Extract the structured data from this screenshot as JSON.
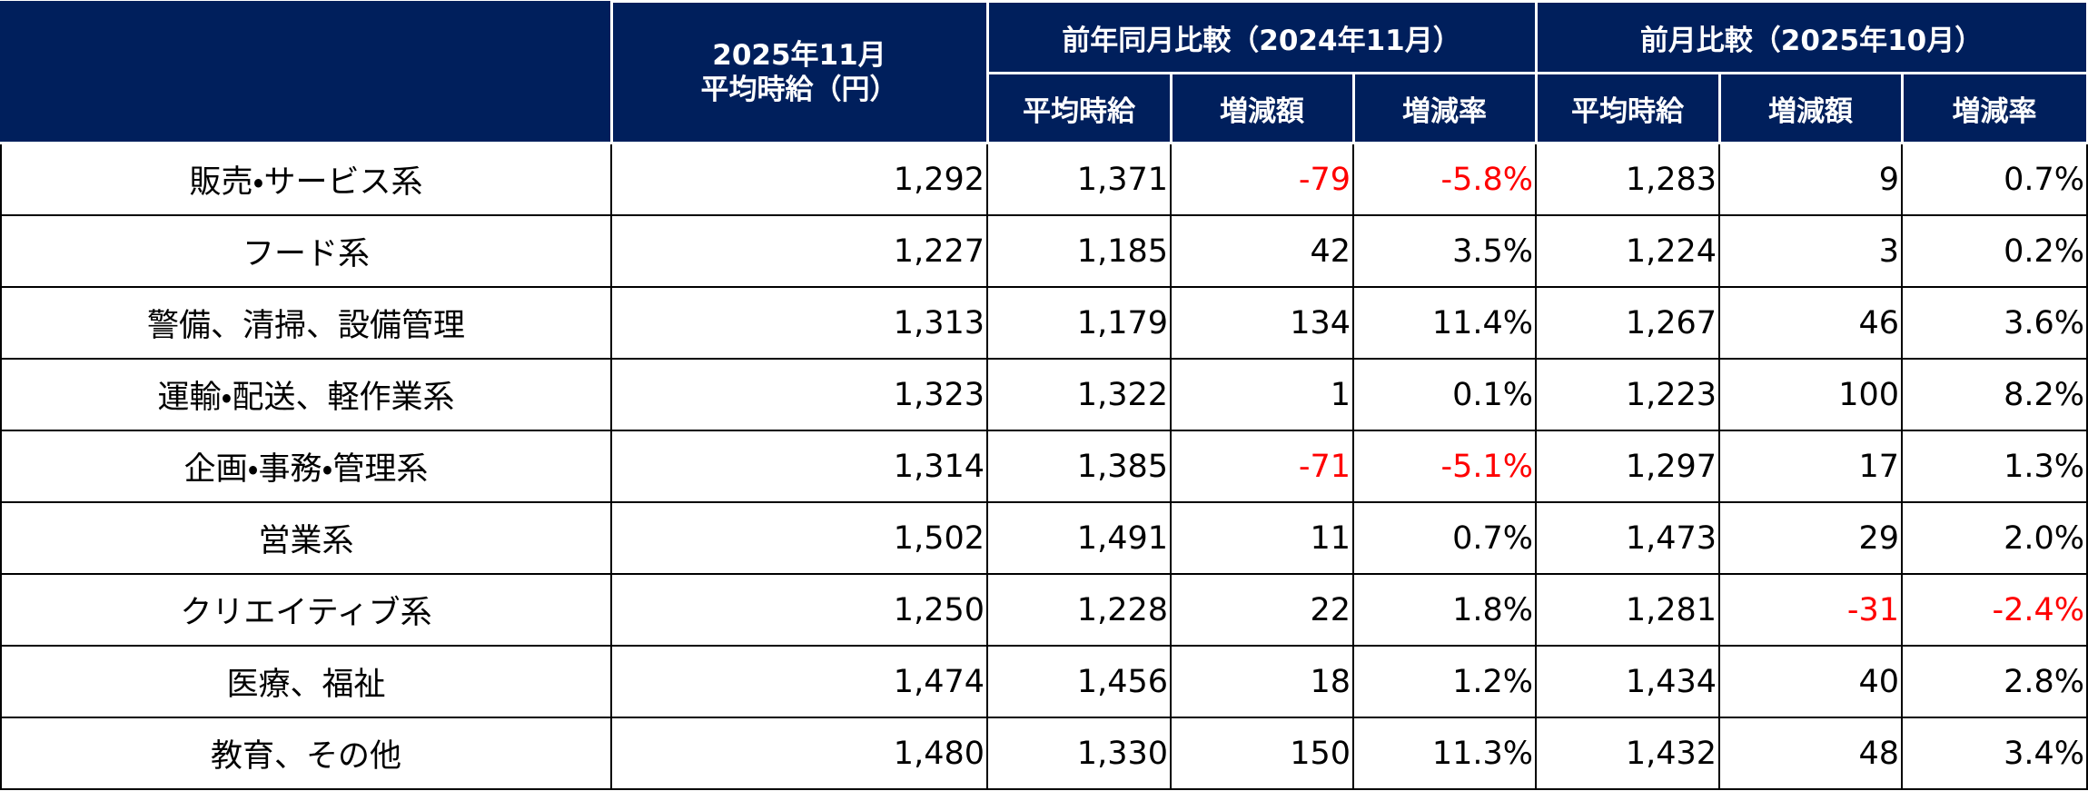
{
  "header": {
    "current": [
      "2025年11月",
      "平均時給（円）"
    ],
    "groups": [
      "前年同月比較（2024年11月）",
      "前月比較（2025年10月）"
    ],
    "subheaders": [
      "平均時給",
      "増減額",
      "増減率",
      "平均時給",
      "増減額",
      "増減率"
    ]
  },
  "table": {
    "rows": [
      [
        "販売・サービス系",
        "1,292",
        "1,371",
        "-79",
        "-5.8%",
        "1,283",
        "9",
        "0.7%"
      ],
      [
        "フード系",
        "1,227",
        "1,185",
        "42",
        "3.5%",
        "1,224",
        "3",
        "0.2%"
      ],
      [
        "警備、清掃、設備管理",
        "1,313",
        "1,179",
        "134",
        "11.4%",
        "1,267",
        "46",
        "3.6%"
      ],
      [
        "運輸・配送、軽作業系",
        "1,323",
        "1,322",
        "1",
        "0.1%",
        "1,223",
        "100",
        "8.2%"
      ],
      [
        "企画・事務・管理系",
        "1,314",
        "1,385",
        "-71",
        "-5.1%",
        "1,297",
        "17",
        "1.3%"
      ],
      [
        "営業系",
        "1,502",
        "1,491",
        "11",
        "0.7%",
        "1,473",
        "29",
        "2.0%"
      ],
      [
        "クリエイティブ系",
        "1,250",
        "1,228",
        "22",
        "1.8%",
        "1,281",
        "-31",
        "-2.4%"
      ],
      [
        "医療、福祉",
        "1,474",
        "1,456",
        "18",
        "1.2%",
        "1,434",
        "40",
        "2.8%"
      ],
      [
        "教育、その他",
        "1,480",
        "1,330",
        "150",
        "11.3%",
        "1,432",
        "48",
        "3.4%"
      ]
    ]
  }
}
